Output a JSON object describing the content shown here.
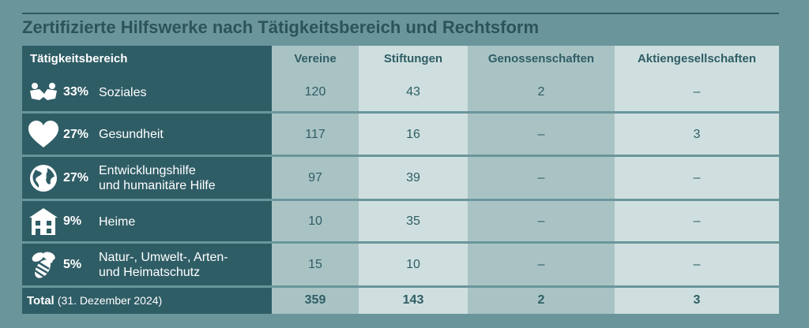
{
  "title": "Zertifizierte Hilfswerke nach Tätigkeitsbereich und Rechtsform",
  "chart_data": {
    "type": "table",
    "columns": [
      "Tätigkeitsbereich",
      "Vereine",
      "Stiftungen",
      "Genossenschaften",
      "Aktiengesellschaften"
    ],
    "rows": [
      {
        "icon": "people-icon",
        "percent": "33%",
        "label_lines": [
          "Soziales"
        ],
        "values": [
          "120",
          "43",
          "2",
          "–"
        ]
      },
      {
        "icon": "heart-icon",
        "percent": "27%",
        "label_lines": [
          "Gesundheit"
        ],
        "values": [
          "117",
          "16",
          "–",
          "3"
        ]
      },
      {
        "icon": "globe-icon",
        "percent": "27%",
        "label_lines": [
          "Entwicklungshilfe",
          "und humanitäre Hilfe"
        ],
        "values": [
          "97",
          "39",
          "–",
          "–"
        ]
      },
      {
        "icon": "house-icon",
        "percent": "9%",
        "label_lines": [
          "Heime"
        ],
        "values": [
          "10",
          "35",
          "–",
          "–"
        ]
      },
      {
        "icon": "bee-icon",
        "percent": "5%",
        "label_lines": [
          "Natur-, Umwelt-, Arten-",
          "und Heimatschutz"
        ],
        "values": [
          "15",
          "10",
          "–",
          "–"
        ]
      }
    ],
    "total": {
      "label": "Total",
      "note": "(31. Dezember 2024)",
      "values": [
        "359",
        "143",
        "2",
        "3"
      ]
    }
  }
}
